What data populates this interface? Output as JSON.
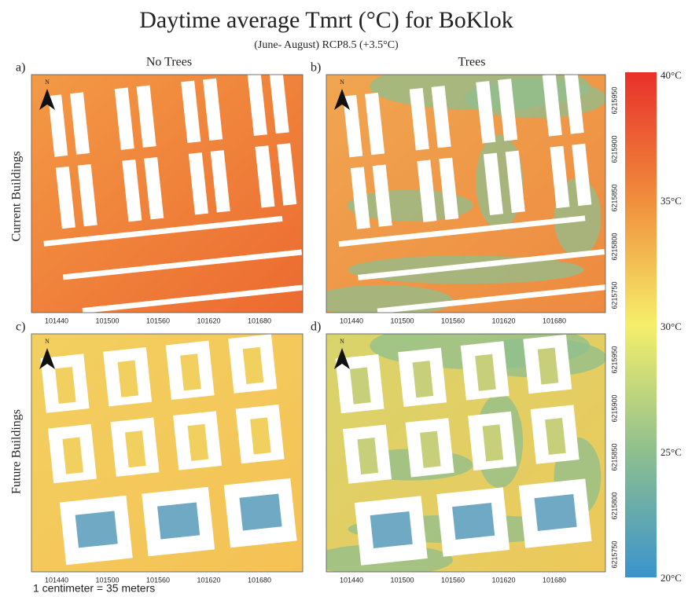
{
  "header": {
    "title": "Daytime average Tmrt (°C) for BoKlok",
    "subtitle": "(June- August) RCP8.5 (+3.5°C)"
  },
  "columns": [
    "No Trees",
    "Trees"
  ],
  "rows": [
    "Current Buildings",
    "Future Buildings"
  ],
  "panels": [
    {
      "label": "a)"
    },
    {
      "label": "b)"
    },
    {
      "label": "c)"
    },
    {
      "label": "d)"
    }
  ],
  "north": "N",
  "x_ticks": [
    101440,
    101500,
    101560,
    101620,
    101680
  ],
  "y_ticks": [
    6215950,
    6215900,
    6215850,
    6215800,
    6215750
  ],
  "colorbar": {
    "labels": [
      "40°C",
      "35°C",
      "30°C",
      "25°C",
      "20°C"
    ]
  },
  "scale_note": "1 centimeter = 35 meters"
}
